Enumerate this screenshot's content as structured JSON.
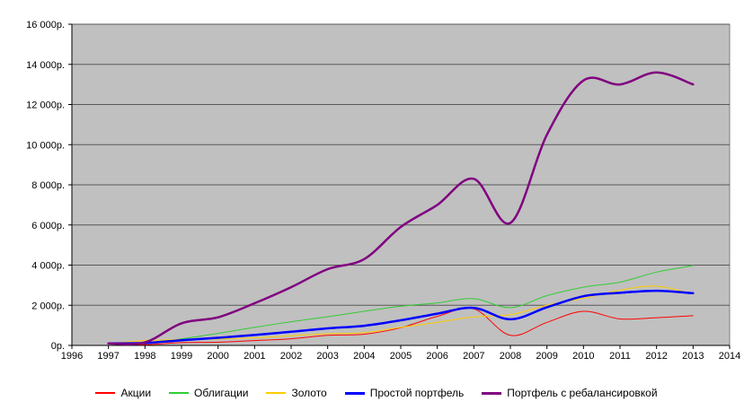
{
  "chart_data": {
    "type": "line",
    "title": "",
    "xlabel": "",
    "ylabel": "",
    "grid": true,
    "legend_position": "bottom",
    "plot_bg": "#c0c0c0",
    "plot_border": "#808080",
    "gridline_color": "#595959",
    "axis_color": "#000000",
    "x": [
      1997,
      1998,
      1999,
      2000,
      2001,
      2002,
      2003,
      2004,
      2005,
      2006,
      2007,
      2008,
      2009,
      2010,
      2011,
      2012,
      2013
    ],
    "x_axis": {
      "min": 1996,
      "max": 2014,
      "tick_labels": [
        "1996",
        "1997",
        "1998",
        "1999",
        "2000",
        "2001",
        "2002",
        "2003",
        "2004",
        "2005",
        "2006",
        "2007",
        "2008",
        "2009",
        "2010",
        "2011",
        "2012",
        "2013",
        "2014"
      ]
    },
    "y_axis": {
      "min": 0,
      "max": 16000,
      "tick_step": 2000,
      "tick_labels": [
        "0р.",
        "2 000р.",
        "4 000р.",
        "6 000р.",
        "8 000р.",
        "10 000р.",
        "12 000р.",
        "14 000р.",
        "16 000р."
      ]
    },
    "series": [
      {
        "id": "akcii",
        "name": "Акции",
        "color": "#ff0000",
        "width": 1,
        "values": [
          100,
          40,
          140,
          160,
          240,
          330,
          500,
          560,
          880,
          1450,
          1820,
          500,
          1150,
          1700,
          1320,
          1380,
          1480
        ]
      },
      {
        "id": "obligacii",
        "name": "Облигации",
        "color": "#33cc33",
        "width": 1,
        "values": [
          100,
          90,
          320,
          600,
          900,
          1180,
          1430,
          1700,
          1950,
          2120,
          2330,
          1880,
          2480,
          2900,
          3150,
          3650,
          3980
        ]
      },
      {
        "id": "zoloto",
        "name": "Золото",
        "color": "#ffcc00",
        "width": 1,
        "values": [
          100,
          240,
          290,
          320,
          380,
          480,
          580,
          640,
          900,
          1150,
          1420,
          1530,
          2000,
          2350,
          2750,
          2950,
          2550
        ]
      },
      {
        "id": "prostoy-portfel",
        "name": "Простой портфель",
        "color": "#0000ff",
        "width": 2.5,
        "values": [
          100,
          120,
          260,
          380,
          520,
          680,
          850,
          980,
          1250,
          1580,
          1870,
          1300,
          1900,
          2450,
          2620,
          2720,
          2600
        ]
      },
      {
        "id": "portfel-s-rebalansirovkoy",
        "name": "Портфель с ребалансировкой",
        "color": "#800080",
        "width": 2.5,
        "values": [
          100,
          150,
          1100,
          1400,
          2100,
          2900,
          3800,
          4300,
          5900,
          7000,
          8300,
          6100,
          10500,
          13200,
          13000,
          13600,
          13000
        ]
      }
    ]
  }
}
